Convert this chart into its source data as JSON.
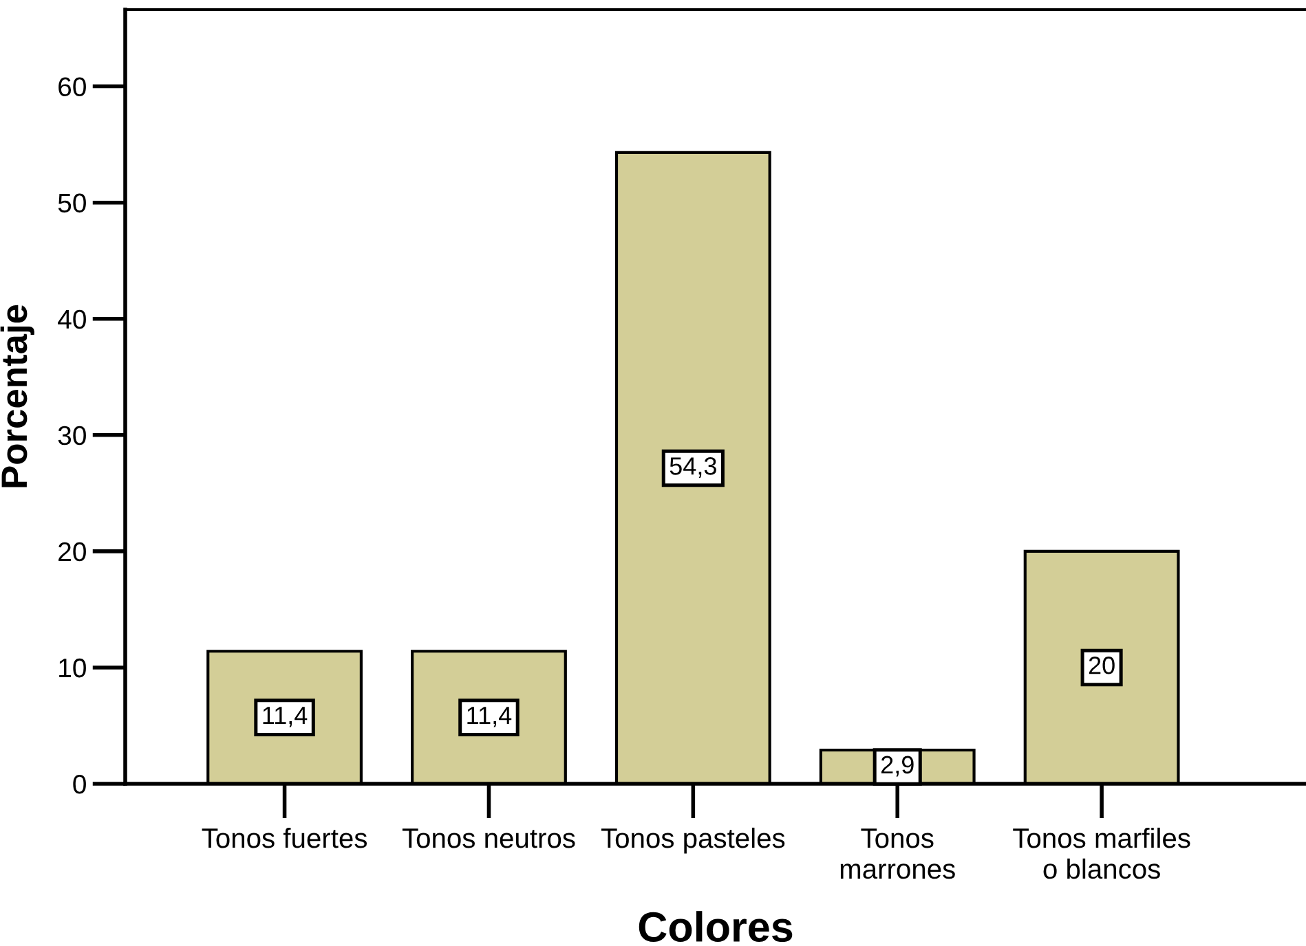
{
  "chart_data": {
    "type": "bar",
    "xlabel": "Colores",
    "ylabel": "Porcentaje",
    "categories": [
      "Tonos fuertes",
      "Tonos neutros",
      "Tonos pasteles",
      "Tonos\nmarrones",
      "Tonos marfiles\no blancos"
    ],
    "values": [
      11.4,
      11.4,
      54.3,
      2.9,
      20
    ],
    "value_labels": [
      "11,4",
      "11,4",
      "54,3",
      "2,9",
      "20"
    ],
    "color": "#d3ce97",
    "ylim": [
      0,
      66.6
    ],
    "yticks": [
      0,
      10,
      20,
      30,
      40,
      50,
      60
    ]
  }
}
